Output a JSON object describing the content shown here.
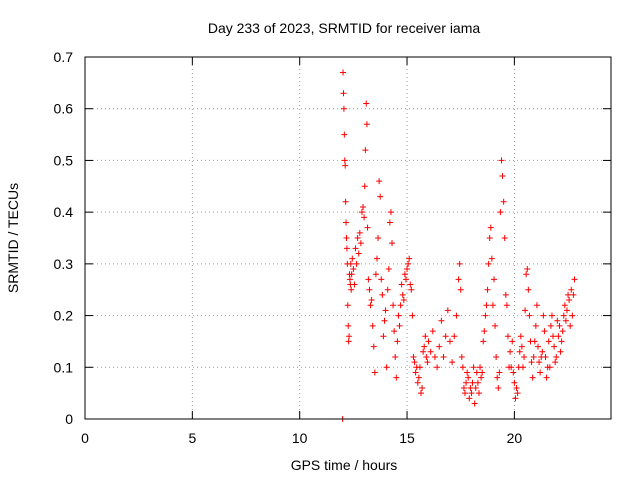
{
  "chart_data": {
    "type": "scatter",
    "title": "Day 233 of 2023, SRMTID for receiver iama",
    "xlabel": "GPS time / hours",
    "ylabel": "SRMTID / TECUs",
    "xlim": [
      0,
      24.5
    ],
    "ylim": [
      0,
      0.7
    ],
    "x_ticks": [
      0,
      5,
      10,
      15,
      20
    ],
    "x_tick_labels": [
      "0",
      "5",
      "10",
      "15",
      "20"
    ],
    "y_ticks": [
      0,
      0.1,
      0.2,
      0.3,
      0.4,
      0.5,
      0.6,
      0.7
    ],
    "y_tick_labels": [
      "0",
      "0.1",
      "0.2",
      "0.3",
      "0.4",
      "0.5",
      "0.6",
      "0.7"
    ],
    "grid": true,
    "marker": "+",
    "color": "#ff0000",
    "series": [
      {
        "name": "SRMTID",
        "x": [
          12.0,
          12.02,
          12.04,
          12.06,
          12.08,
          12.1,
          12.12,
          12.14,
          12.16,
          12.18,
          12.2,
          12.22,
          12.24,
          12.26,
          12.28,
          12.3,
          12.32,
          12.34,
          12.36,
          12.38,
          12.4,
          12.42,
          12.45,
          12.5,
          12.55,
          12.6,
          12.65,
          12.7,
          12.75,
          12.8,
          12.85,
          12.9,
          12.95,
          13.0,
          13.03,
          13.06,
          13.1,
          13.13,
          13.16,
          13.2,
          13.25,
          13.3,
          13.35,
          13.4,
          13.45,
          13.5,
          13.55,
          13.6,
          13.65,
          13.7,
          13.75,
          13.8,
          13.85,
          13.9,
          13.95,
          14.0,
          14.05,
          14.1,
          14.15,
          14.2,
          14.25,
          14.3,
          14.35,
          14.4,
          14.45,
          14.5,
          14.55,
          14.6,
          14.65,
          14.7,
          14.75,
          14.8,
          14.85,
          14.9,
          14.95,
          15.0,
          15.05,
          15.1,
          15.15,
          15.2,
          15.25,
          15.3,
          15.35,
          15.4,
          15.45,
          15.5,
          15.55,
          15.6,
          15.65,
          15.7,
          15.75,
          15.8,
          15.85,
          15.9,
          15.95,
          16.0,
          16.1,
          16.2,
          16.3,
          16.4,
          16.5,
          16.6,
          16.7,
          16.8,
          16.9,
          17.0,
          17.1,
          17.2,
          17.3,
          17.4,
          17.45,
          17.5,
          17.55,
          17.6,
          17.65,
          17.7,
          17.75,
          17.8,
          17.85,
          17.9,
          17.95,
          18.0,
          18.05,
          18.1,
          18.15,
          18.2,
          18.25,
          18.3,
          18.35,
          18.4,
          18.45,
          18.5,
          18.55,
          18.6,
          18.65,
          18.7,
          18.75,
          18.8,
          18.85,
          18.9,
          18.95,
          19.0,
          19.05,
          19.1,
          19.15,
          19.2,
          19.25,
          19.3,
          19.35,
          19.4,
          19.45,
          19.5,
          19.55,
          19.6,
          19.65,
          19.7,
          19.75,
          19.8,
          19.85,
          19.9,
          19.95,
          20.0,
          20.05,
          20.1,
          20.15,
          20.2,
          20.25,
          20.3,
          20.35,
          20.4,
          20.45,
          20.5,
          20.55,
          20.6,
          20.65,
          20.7,
          20.75,
          20.8,
          20.85,
          20.9,
          20.95,
          21.0,
          21.05,
          21.1,
          21.15,
          21.2,
          21.25,
          21.3,
          21.35,
          21.4,
          21.45,
          21.5,
          21.55,
          21.6,
          21.65,
          21.7,
          21.75,
          21.8,
          21.85,
          21.9,
          21.95,
          22.0,
          22.05,
          22.1,
          22.15,
          22.2,
          22.25,
          22.3,
          22.35,
          22.4,
          22.45,
          22.5,
          22.55,
          22.6,
          22.65,
          22.7,
          22.75,
          22.8
        ],
        "y": [
          0.0,
          0.67,
          0.63,
          0.6,
          0.55,
          0.5,
          0.49,
          0.42,
          0.38,
          0.35,
          0.33,
          0.3,
          0.22,
          0.18,
          0.15,
          0.16,
          0.28,
          0.27,
          0.26,
          0.3,
          0.25,
          0.28,
          0.31,
          0.29,
          0.26,
          0.33,
          0.3,
          0.35,
          0.32,
          0.36,
          0.34,
          0.4,
          0.41,
          0.39,
          0.45,
          0.52,
          0.61,
          0.57,
          0.37,
          0.27,
          0.25,
          0.22,
          0.23,
          0.18,
          0.14,
          0.09,
          0.28,
          0.31,
          0.35,
          0.46,
          0.43,
          0.27,
          0.24,
          0.16,
          0.19,
          0.21,
          0.1,
          0.25,
          0.29,
          0.38,
          0.4,
          0.34,
          0.22,
          0.17,
          0.12,
          0.08,
          0.15,
          0.2,
          0.18,
          0.22,
          0.26,
          0.24,
          0.23,
          0.28,
          0.27,
          0.29,
          0.3,
          0.31,
          0.26,
          0.25,
          0.2,
          0.12,
          0.11,
          0.09,
          0.1,
          0.07,
          0.08,
          0.1,
          0.05,
          0.06,
          0.13,
          0.14,
          0.16,
          0.12,
          0.11,
          0.15,
          0.13,
          0.17,
          0.12,
          0.1,
          0.14,
          0.19,
          0.12,
          0.16,
          0.21,
          0.15,
          0.11,
          0.16,
          0.2,
          0.27,
          0.3,
          0.25,
          0.12,
          0.1,
          0.06,
          0.05,
          0.07,
          0.09,
          0.08,
          0.04,
          0.06,
          0.05,
          0.07,
          0.1,
          0.03,
          0.06,
          0.09,
          0.07,
          0.05,
          0.1,
          0.08,
          0.09,
          0.15,
          0.17,
          0.2,
          0.22,
          0.25,
          0.3,
          0.35,
          0.37,
          0.31,
          0.22,
          0.27,
          0.18,
          0.12,
          0.08,
          0.06,
          0.09,
          0.4,
          0.5,
          0.47,
          0.42,
          0.35,
          0.24,
          0.22,
          0.16,
          0.1,
          0.13,
          0.1,
          0.15,
          0.09,
          0.07,
          0.04,
          0.06,
          0.05,
          0.1,
          0.13,
          0.16,
          0.14,
          0.1,
          0.12,
          0.21,
          0.28,
          0.29,
          0.25,
          0.2,
          0.15,
          0.11,
          0.08,
          0.12,
          0.15,
          0.18,
          0.22,
          0.14,
          0.11,
          0.09,
          0.12,
          0.13,
          0.2,
          0.17,
          0.12,
          0.08,
          0.1,
          0.15,
          0.1,
          0.18,
          0.2,
          0.16,
          0.14,
          0.11,
          0.12,
          0.19,
          0.16,
          0.18,
          0.13,
          0.15,
          0.17,
          0.2,
          0.22,
          0.19,
          0.21,
          0.24,
          0.23,
          0.18,
          0.25,
          0.2,
          0.24,
          0.27
        ]
      }
    ]
  }
}
